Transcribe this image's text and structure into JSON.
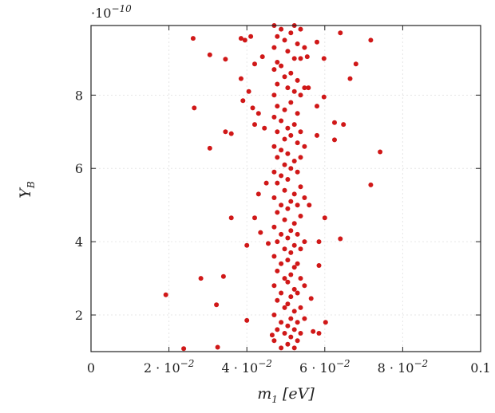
{
  "chart_data": {
    "type": "scatter",
    "xlabel": "m",
    "xlabel_sub": "1",
    "xlabel_unit": "[eV]",
    "ylabel": "Y",
    "ylabel_sub": "B",
    "y_multiplier": "·10",
    "y_multiplier_exp": "−10",
    "xlim": [
      0,
      0.1
    ],
    "ylim": [
      1.0,
      9.9
    ],
    "grid": true,
    "legend": "none",
    "colors": {
      "points": "#d01818",
      "grid": "#e6e6e6",
      "axes": "#222222"
    },
    "x_ticks": [
      {
        "value": 0,
        "base": "0",
        "exp": ""
      },
      {
        "value": 0.02,
        "base": "2 · 10",
        "exp": "−2"
      },
      {
        "value": 0.04,
        "base": "4 · 10",
        "exp": "−2"
      },
      {
        "value": 0.06,
        "base": "6 · 10",
        "exp": "−2"
      },
      {
        "value": 0.08,
        "base": "8 · 10",
        "exp": "−2"
      },
      {
        "value": 0.1,
        "base": "0.1",
        "exp": ""
      }
    ],
    "y_ticks": [
      {
        "value": 2,
        "label": "2"
      },
      {
        "value": 4,
        "label": "4"
      },
      {
        "value": 6,
        "label": "6"
      },
      {
        "value": 8,
        "label": "8"
      }
    ],
    "series": [
      {
        "points": [
          [
            0.0192,
            2.55
          ],
          [
            0.0238,
            1.08
          ],
          [
            0.0262,
            9.55
          ],
          [
            0.0265,
            7.65
          ],
          [
            0.0282,
            3.0
          ],
          [
            0.0305,
            9.1
          ],
          [
            0.0305,
            6.55
          ],
          [
            0.0322,
            2.28
          ],
          [
            0.0325,
            1.12
          ],
          [
            0.034,
            3.05
          ],
          [
            0.0345,
            8.98
          ],
          [
            0.0345,
            7.0
          ],
          [
            0.036,
            6.95
          ],
          [
            0.036,
            4.65
          ],
          [
            0.0385,
            9.55
          ],
          [
            0.0385,
            8.45
          ],
          [
            0.039,
            7.85
          ],
          [
            0.0395,
            9.5
          ],
          [
            0.04,
            1.85
          ],
          [
            0.04,
            3.9
          ],
          [
            0.0405,
            8.1
          ],
          [
            0.041,
            9.6
          ],
          [
            0.0415,
            7.65
          ],
          [
            0.042,
            8.85
          ],
          [
            0.042,
            7.2
          ],
          [
            0.042,
            4.65
          ],
          [
            0.043,
            7.5
          ],
          [
            0.043,
            5.3
          ],
          [
            0.0435,
            4.25
          ],
          [
            0.044,
            9.05
          ],
          [
            0.0445,
            7.1
          ],
          [
            0.045,
            5.6
          ],
          [
            0.0455,
            3.95
          ],
          [
            0.0465,
            1.45
          ],
          [
            0.047,
            9.9
          ],
          [
            0.047,
            9.3
          ],
          [
            0.047,
            8.7
          ],
          [
            0.047,
            8.0
          ],
          [
            0.047,
            7.4
          ],
          [
            0.047,
            6.6
          ],
          [
            0.047,
            5.9
          ],
          [
            0.047,
            5.2
          ],
          [
            0.047,
            4.4
          ],
          [
            0.047,
            3.6
          ],
          [
            0.047,
            2.8
          ],
          [
            0.047,
            2.0
          ],
          [
            0.047,
            1.3
          ],
          [
            0.0478,
            9.6
          ],
          [
            0.0478,
            8.9
          ],
          [
            0.0478,
            8.3
          ],
          [
            0.0478,
            7.7
          ],
          [
            0.0478,
            7.0
          ],
          [
            0.0478,
            6.3
          ],
          [
            0.0478,
            5.6
          ],
          [
            0.0478,
            4.8
          ],
          [
            0.0478,
            4.0
          ],
          [
            0.0478,
            3.2
          ],
          [
            0.0478,
            2.4
          ],
          [
            0.0478,
            1.6
          ],
          [
            0.0488,
            9.8
          ],
          [
            0.0488,
            8.8
          ],
          [
            0.0488,
            7.3
          ],
          [
            0.0488,
            6.5
          ],
          [
            0.0488,
            5.8
          ],
          [
            0.0488,
            5.0
          ],
          [
            0.0488,
            4.2
          ],
          [
            0.0488,
            3.4
          ],
          [
            0.0488,
            2.6
          ],
          [
            0.0488,
            1.8
          ],
          [
            0.0488,
            1.1
          ],
          [
            0.0497,
            9.5
          ],
          [
            0.0497,
            8.5
          ],
          [
            0.0497,
            7.6
          ],
          [
            0.0497,
            6.8
          ],
          [
            0.0497,
            6.1
          ],
          [
            0.0497,
            5.4
          ],
          [
            0.0497,
            4.6
          ],
          [
            0.0497,
            3.8
          ],
          [
            0.0497,
            3.0
          ],
          [
            0.0497,
            2.2
          ],
          [
            0.0497,
            1.5
          ],
          [
            0.0505,
            9.2
          ],
          [
            0.0505,
            8.2
          ],
          [
            0.0505,
            7.1
          ],
          [
            0.0505,
            6.4
          ],
          [
            0.0505,
            5.7
          ],
          [
            0.0505,
            4.9
          ],
          [
            0.0505,
            4.1
          ],
          [
            0.0505,
            3.5
          ],
          [
            0.0505,
            2.9
          ],
          [
            0.0505,
            2.3
          ],
          [
            0.0505,
            1.7
          ],
          [
            0.0505,
            1.2
          ],
          [
            0.0513,
            9.7
          ],
          [
            0.0513,
            8.6
          ],
          [
            0.0513,
            7.8
          ],
          [
            0.0513,
            6.9
          ],
          [
            0.0513,
            6.0
          ],
          [
            0.0513,
            5.1
          ],
          [
            0.0513,
            4.3
          ],
          [
            0.0513,
            3.7
          ],
          [
            0.0513,
            3.1
          ],
          [
            0.0513,
            2.5
          ],
          [
            0.0513,
            1.9
          ],
          [
            0.0513,
            1.4
          ],
          [
            0.0522,
            9.9
          ],
          [
            0.0522,
            9.0
          ],
          [
            0.0522,
            8.1
          ],
          [
            0.0522,
            7.2
          ],
          [
            0.0522,
            6.2
          ],
          [
            0.0522,
            5.3
          ],
          [
            0.0522,
            4.5
          ],
          [
            0.0522,
            3.9
          ],
          [
            0.0522,
            3.3
          ],
          [
            0.0522,
            2.7
          ],
          [
            0.0522,
            2.1
          ],
          [
            0.0522,
            1.6
          ],
          [
            0.0522,
            1.1
          ],
          [
            0.053,
            9.4
          ],
          [
            0.053,
            8.4
          ],
          [
            0.053,
            7.5
          ],
          [
            0.053,
            6.7
          ],
          [
            0.053,
            5.9
          ],
          [
            0.053,
            5.0
          ],
          [
            0.053,
            4.2
          ],
          [
            0.053,
            3.4
          ],
          [
            0.053,
            2.6
          ],
          [
            0.053,
            1.8
          ],
          [
            0.053,
            1.3
          ],
          [
            0.0538,
            9.8
          ],
          [
            0.0538,
            9.0
          ],
          [
            0.0538,
            8.0
          ],
          [
            0.0538,
            7.0
          ],
          [
            0.0538,
            6.3
          ],
          [
            0.0538,
            5.5
          ],
          [
            0.0538,
            4.7
          ],
          [
            0.0538,
            3.8
          ],
          [
            0.0538,
            3.0
          ],
          [
            0.0538,
            2.2
          ],
          [
            0.0538,
            1.5
          ],
          [
            0.0548,
            9.3
          ],
          [
            0.0548,
            8.2
          ],
          [
            0.0548,
            6.6
          ],
          [
            0.0548,
            5.2
          ],
          [
            0.0548,
            4.0
          ],
          [
            0.0548,
            2.8
          ],
          [
            0.0548,
            1.9
          ],
          [
            0.0555,
            9.05
          ],
          [
            0.0558,
            8.2
          ],
          [
            0.056,
            5.0
          ],
          [
            0.0565,
            2.45
          ],
          [
            0.057,
            1.55
          ],
          [
            0.058,
            9.45
          ],
          [
            0.058,
            7.7
          ],
          [
            0.058,
            6.9
          ],
          [
            0.0585,
            4.0
          ],
          [
            0.0585,
            3.35
          ],
          [
            0.0585,
            1.5
          ],
          [
            0.0598,
            7.95
          ],
          [
            0.0598,
            9.0
          ],
          [
            0.06,
            4.65
          ],
          [
            0.0602,
            1.8
          ],
          [
            0.0625,
            6.78
          ],
          [
            0.0625,
            7.25
          ],
          [
            0.064,
            9.7
          ],
          [
            0.064,
            4.08
          ],
          [
            0.0648,
            7.2
          ],
          [
            0.0665,
            8.45
          ],
          [
            0.068,
            8.85
          ],
          [
            0.0718,
            9.5
          ],
          [
            0.0718,
            5.55
          ],
          [
            0.0742,
            6.45
          ]
        ]
      }
    ]
  }
}
